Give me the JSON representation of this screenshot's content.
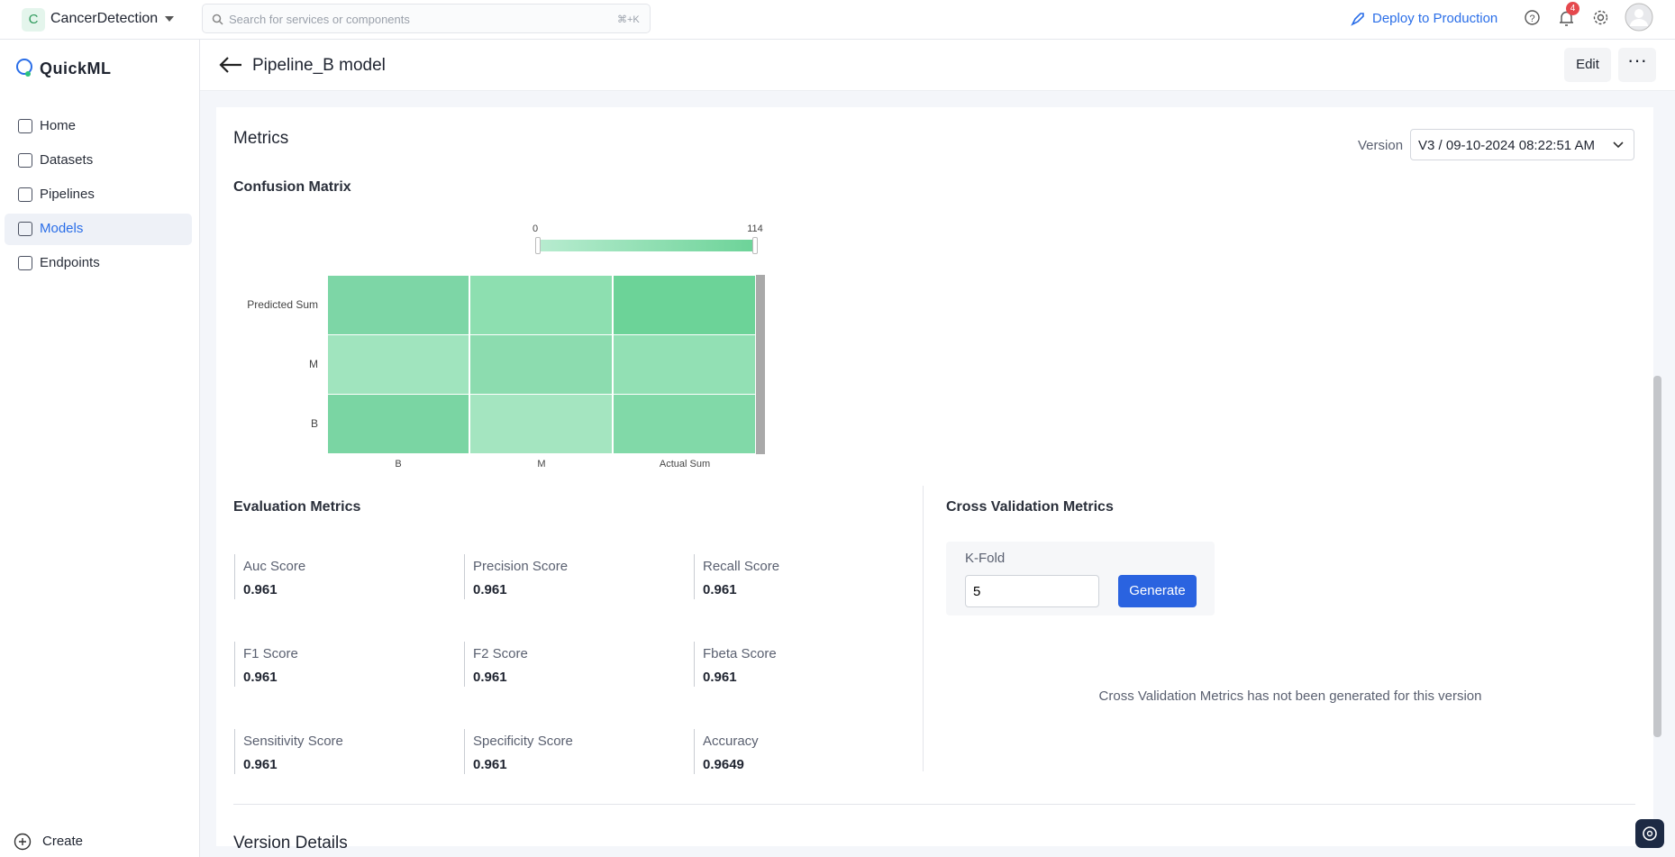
{
  "topbar": {
    "org_initial": "C",
    "org": "CancerDetection",
    "search_placeholder": "Search for services or components",
    "shortcut": "⌘+K",
    "deploy": "Deploy to Production",
    "notifications": 4
  },
  "sidebar": {
    "brand": "QuickML",
    "nav": [
      "Home",
      "Datasets",
      "Pipelines",
      "Models",
      "Endpoints"
    ],
    "active": "Models",
    "create": "Create"
  },
  "header": {
    "title": "Pipeline_B model",
    "edit": "Edit"
  },
  "metrics": {
    "title": "Metrics",
    "version_label": "Version",
    "version": "V3 / 09-10-2024 08:22:51 AM"
  },
  "confusion_matrix": {
    "title": "Confusion Matrix",
    "scale_min": 0,
    "scale_max": 114,
    "rows": [
      "Predicted Sum",
      "M",
      "B"
    ],
    "columns": [
      "B",
      "M",
      "Actual Sum"
    ]
  },
  "evaluation": {
    "title": "Evaluation Metrics",
    "items": [
      {
        "label": "Auc Score",
        "value": 0.961
      },
      {
        "label": "Precision Score",
        "value": 0.961
      },
      {
        "label": "Recall Score",
        "value": 0.961
      },
      {
        "label": "F1 Score",
        "value": 0.961
      },
      {
        "label": "F2 Score",
        "value": 0.961
      },
      {
        "label": "Fbeta Score",
        "value": 0.961
      },
      {
        "label": "Sensitivity Score",
        "value": 0.961
      },
      {
        "label": "Specificity Score",
        "value": 0.961
      },
      {
        "label": "Accuracy",
        "value": 0.9649
      }
    ]
  },
  "cross_validation": {
    "title": "Cross Validation Metrics",
    "kfold_label": "K-Fold",
    "kfold_value": 5,
    "button": "Generate",
    "empty": "Cross Validation Metrics has not been generated for this version"
  },
  "version_details": {
    "title": "Version Details"
  }
}
